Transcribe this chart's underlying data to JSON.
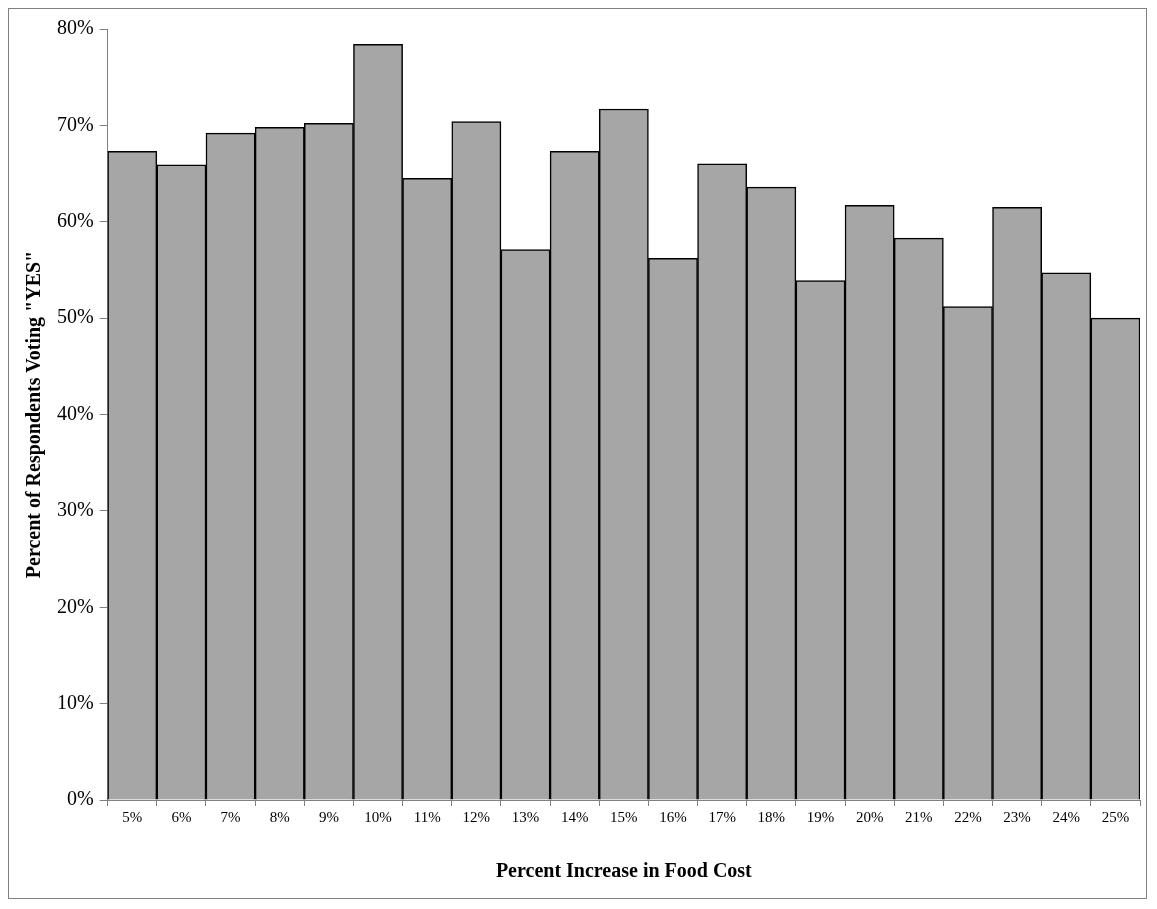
{
  "chart_data": {
    "type": "bar",
    "xlabel": "Percent Increase in Food Cost",
    "ylabel": "Percent of Respondents Voting \"YES\"",
    "categories": [
      "5%",
      "6%",
      "7%",
      "8%",
      "9%",
      "10%",
      "11%",
      "12%",
      "13%",
      "14%",
      "15%",
      "16%",
      "17%",
      "18%",
      "19%",
      "20%",
      "21%",
      "22%",
      "23%",
      "24%",
      "25%"
    ],
    "values": [
      67.3,
      65.9,
      69.2,
      69.8,
      70.2,
      78.4,
      64.5,
      70.4,
      57.1,
      67.3,
      71.7,
      56.2,
      66.0,
      63.6,
      53.9,
      61.7,
      58.3,
      51.2,
      61.5,
      54.7,
      50.0
    ],
    "color": "#a6a6a6",
    "ylim": [
      0,
      80
    ],
    "yticks": [
      {
        "value": 0,
        "label": "0%"
      },
      {
        "value": 10,
        "label": "10%"
      },
      {
        "value": 20,
        "label": "20%"
      },
      {
        "value": 30,
        "label": "30%"
      },
      {
        "value": 40,
        "label": "40%"
      },
      {
        "value": 50,
        "label": "50%"
      },
      {
        "value": 60,
        "label": "60%"
      },
      {
        "value": 70,
        "label": "70%"
      },
      {
        "value": 80,
        "label": "80%"
      }
    ],
    "grid": false,
    "legend": false
  }
}
